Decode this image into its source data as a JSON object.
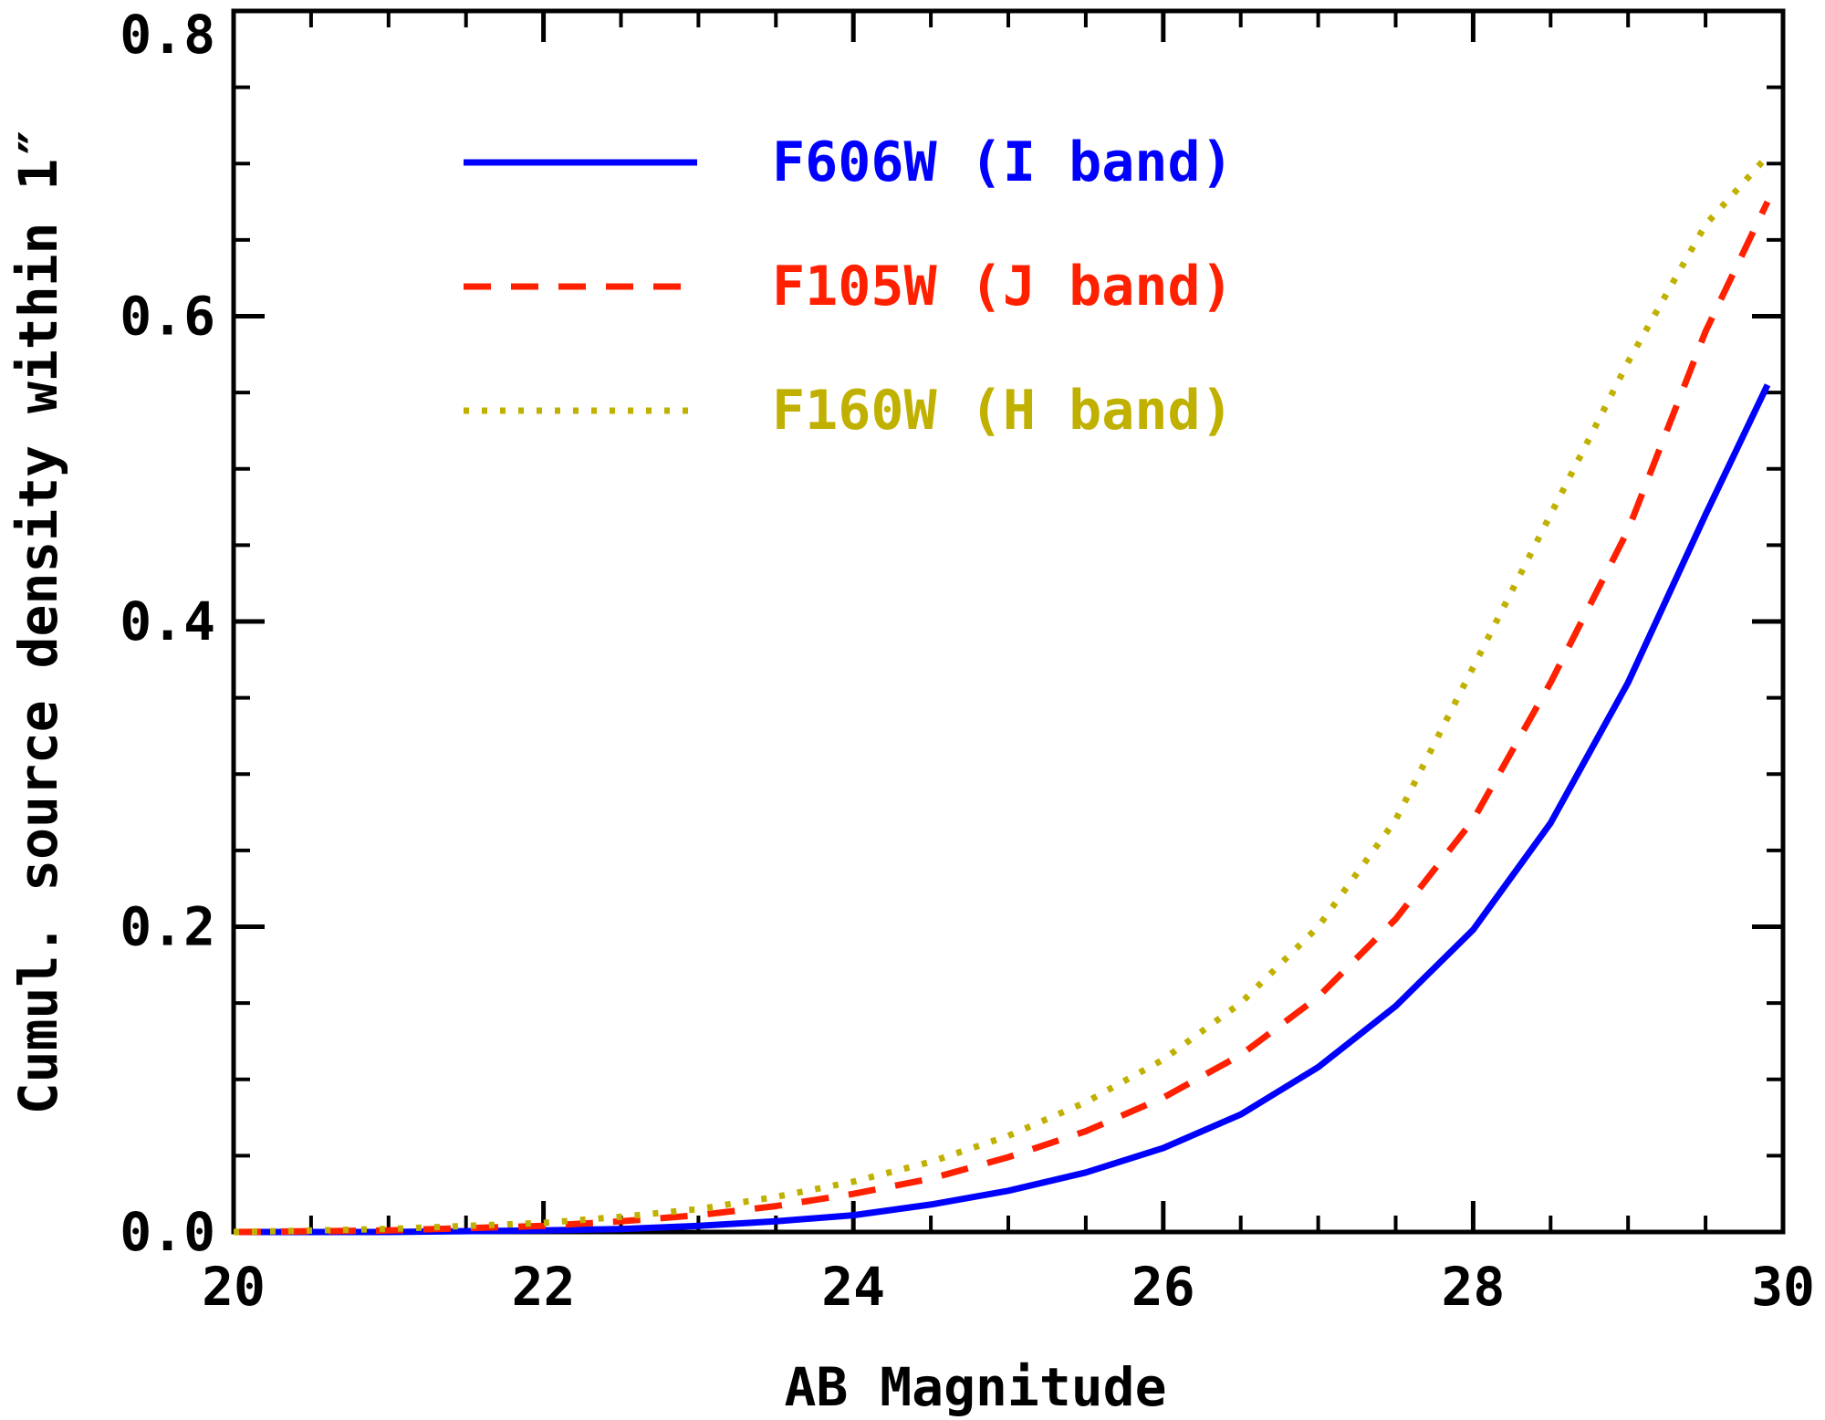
{
  "chart_data": {
    "type": "line",
    "title": "",
    "xlabel": "AB Magnitude",
    "ylabel": "Cumul. source density within 1″",
    "xlim": [
      20,
      30
    ],
    "ylim": [
      0,
      0.8
    ],
    "x_ticks": [
      20,
      22,
      24,
      26,
      28,
      30
    ],
    "x_tick_labels": [
      "20",
      "22",
      "24",
      "26",
      "28",
      "30"
    ],
    "y_ticks": [
      0.0,
      0.2,
      0.4,
      0.6,
      0.8
    ],
    "y_tick_labels": [
      "0.0",
      "0.2",
      "0.4",
      "0.6",
      "0.8"
    ],
    "x_minor_step": 0.5,
    "y_minor_step": 0.05,
    "legend_position": "top-left",
    "grid": false,
    "series": [
      {
        "name": "F606W (I band)",
        "color": "#0000ff",
        "style": "solid",
        "x": [
          20,
          21,
          22,
          22.5,
          23,
          23.5,
          24,
          24.5,
          25,
          25.5,
          26,
          26.5,
          27,
          27.5,
          28,
          28.5,
          29,
          29.5,
          29.9
        ],
        "y": [
          0.0,
          0.0,
          0.001,
          0.002,
          0.004,
          0.007,
          0.011,
          0.018,
          0.027,
          0.039,
          0.055,
          0.077,
          0.108,
          0.148,
          0.198,
          0.268,
          0.36,
          0.47,
          0.555
        ]
      },
      {
        "name": "F105W (J band)",
        "color": "#ff2000",
        "style": "dashed",
        "x": [
          20,
          21,
          22,
          22.5,
          23,
          23.5,
          24,
          24.5,
          25,
          25.5,
          26,
          26.5,
          27,
          27.5,
          28,
          28.5,
          29,
          29.5,
          29.9
        ],
        "y": [
          0.0,
          0.001,
          0.004,
          0.007,
          0.011,
          0.017,
          0.025,
          0.035,
          0.049,
          0.066,
          0.088,
          0.116,
          0.154,
          0.205,
          0.27,
          0.36,
          0.46,
          0.59,
          0.675
        ]
      },
      {
        "name": "F160W (H band)",
        "color": "#c0b000",
        "style": "dotted",
        "x": [
          20,
          21,
          22,
          22.5,
          23,
          23.5,
          24,
          24.5,
          25,
          25.5,
          26,
          26.5,
          27,
          27.5,
          28,
          28.5,
          29,
          29.5,
          29.9
        ],
        "y": [
          0.0,
          0.002,
          0.006,
          0.01,
          0.015,
          0.023,
          0.033,
          0.046,
          0.063,
          0.085,
          0.113,
          0.15,
          0.2,
          0.27,
          0.37,
          0.47,
          0.57,
          0.66,
          0.705
        ]
      }
    ]
  }
}
